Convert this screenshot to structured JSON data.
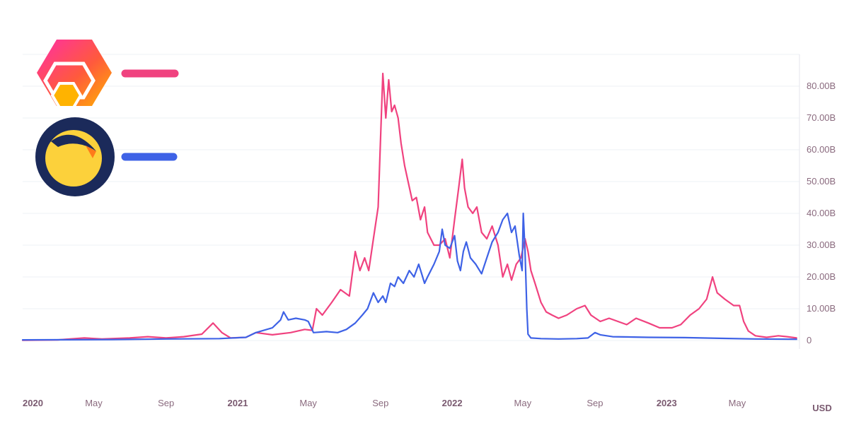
{
  "colors": {
    "hex": "#f0427f",
    "luna": "#3e62e6",
    "tick_text": "#8a6a7e",
    "grid": "#eef0f4"
  },
  "legend": [
    {
      "icon": "hex-logo-icon",
      "color": "#f0427f"
    },
    {
      "icon": "terra-luna-logo-icon",
      "color": "#3e62e6"
    }
  ],
  "unit_label": "USD",
  "chart_data": {
    "type": "line",
    "title": "",
    "xlabel": "",
    "ylabel": "",
    "ylim": [
      0,
      90
    ],
    "yticks": [
      {
        "value": 0,
        "label": "0"
      },
      {
        "value": 10,
        "label": "10.00B"
      },
      {
        "value": 20,
        "label": "20.00B"
      },
      {
        "value": 30,
        "label": "30.00B"
      },
      {
        "value": 40,
        "label": "40.00B"
      },
      {
        "value": 50,
        "label": "50.00B"
      },
      {
        "value": 60,
        "label": "60.00B"
      },
      {
        "value": 70,
        "label": "70.00B"
      },
      {
        "value": 80,
        "label": "80.00B"
      }
    ],
    "xlim": [
      "2020-01-01",
      "2023-08-15"
    ],
    "xticks": [
      {
        "date": "2020-01-01",
        "label": "2020",
        "year": true
      },
      {
        "date": "2020-05-01",
        "label": "May",
        "year": false
      },
      {
        "date": "2020-09-01",
        "label": "Sep",
        "year": false
      },
      {
        "date": "2021-01-01",
        "label": "2021",
        "year": true
      },
      {
        "date": "2021-05-01",
        "label": "May",
        "year": false
      },
      {
        "date": "2021-09-01",
        "label": "Sep",
        "year": false
      },
      {
        "date": "2022-01-01",
        "label": "2022",
        "year": true
      },
      {
        "date": "2022-05-01",
        "label": "May",
        "year": false
      },
      {
        "date": "2022-09-01",
        "label": "Sep",
        "year": false
      },
      {
        "date": "2023-01-01",
        "label": "2023",
        "year": true
      },
      {
        "date": "2023-05-01",
        "label": "May",
        "year": false
      }
    ],
    "series": [
      {
        "color": "#f0427f",
        "points": [
          [
            "2020-01-01",
            0.1
          ],
          [
            "2020-03-01",
            0.2
          ],
          [
            "2020-04-15",
            0.8
          ],
          [
            "2020-05-15",
            0.5
          ],
          [
            "2020-07-01",
            0.8
          ],
          [
            "2020-08-01",
            1.2
          ],
          [
            "2020-09-01",
            0.8
          ],
          [
            "2020-10-01",
            1.2
          ],
          [
            "2020-11-01",
            2.0
          ],
          [
            "2020-11-20",
            5.5
          ],
          [
            "2020-12-05",
            2.5
          ],
          [
            "2020-12-20",
            0.8
          ],
          [
            "2021-01-15",
            1.0
          ],
          [
            "2021-02-01",
            2.5
          ],
          [
            "2021-03-01",
            1.8
          ],
          [
            "2021-04-01",
            2.5
          ],
          [
            "2021-04-25",
            3.5
          ],
          [
            "2021-05-08",
            3.2
          ],
          [
            "2021-05-15",
            10
          ],
          [
            "2021-05-25",
            8
          ],
          [
            "2021-06-10",
            12
          ],
          [
            "2021-06-25",
            16
          ],
          [
            "2021-07-10",
            14
          ],
          [
            "2021-07-20",
            28
          ],
          [
            "2021-07-28",
            22
          ],
          [
            "2021-08-05",
            26
          ],
          [
            "2021-08-12",
            22
          ],
          [
            "2021-08-20",
            32
          ],
          [
            "2021-08-28",
            42
          ],
          [
            "2021-09-05",
            84
          ],
          [
            "2021-09-10",
            70
          ],
          [
            "2021-09-15",
            82
          ],
          [
            "2021-09-20",
            72
          ],
          [
            "2021-09-25",
            74
          ],
          [
            "2021-10-01",
            70
          ],
          [
            "2021-10-06",
            62
          ],
          [
            "2021-10-12",
            55
          ],
          [
            "2021-10-18",
            50
          ],
          [
            "2021-10-25",
            44
          ],
          [
            "2021-11-01",
            45
          ],
          [
            "2021-11-08",
            38
          ],
          [
            "2021-11-15",
            42
          ],
          [
            "2021-11-20",
            34
          ],
          [
            "2021-12-01",
            30
          ],
          [
            "2021-12-10",
            30
          ],
          [
            "2021-12-20",
            32
          ],
          [
            "2021-12-28",
            26
          ],
          [
            "2022-01-05",
            38
          ],
          [
            "2022-01-12",
            48
          ],
          [
            "2022-01-18",
            57
          ],
          [
            "2022-01-22",
            48
          ],
          [
            "2022-01-28",
            42
          ],
          [
            "2022-02-05",
            40
          ],
          [
            "2022-02-12",
            42
          ],
          [
            "2022-02-20",
            34
          ],
          [
            "2022-03-01",
            32
          ],
          [
            "2022-03-10",
            36
          ],
          [
            "2022-03-20",
            30
          ],
          [
            "2022-03-28",
            20
          ],
          [
            "2022-04-05",
            24
          ],
          [
            "2022-04-12",
            19
          ],
          [
            "2022-04-20",
            24
          ],
          [
            "2022-04-28",
            26
          ],
          [
            "2022-05-05",
            32
          ],
          [
            "2022-05-10",
            28
          ],
          [
            "2022-05-15",
            22
          ],
          [
            "2022-05-22",
            18
          ],
          [
            "2022-06-01",
            12
          ],
          [
            "2022-06-10",
            9
          ],
          [
            "2022-06-20",
            8
          ],
          [
            "2022-07-01",
            7
          ],
          [
            "2022-07-15",
            8
          ],
          [
            "2022-08-01",
            10
          ],
          [
            "2022-08-15",
            11
          ],
          [
            "2022-08-25",
            8
          ],
          [
            "2022-09-10",
            6
          ],
          [
            "2022-09-25",
            7
          ],
          [
            "2022-10-10",
            6
          ],
          [
            "2022-10-25",
            5
          ],
          [
            "2022-11-10",
            7
          ],
          [
            "2022-12-01",
            5.5
          ],
          [
            "2022-12-20",
            4
          ],
          [
            "2023-01-10",
            4
          ],
          [
            "2023-01-25",
            5
          ],
          [
            "2023-02-10",
            8
          ],
          [
            "2023-02-25",
            10
          ],
          [
            "2023-03-10",
            13
          ],
          [
            "2023-03-20",
            20
          ],
          [
            "2023-03-28",
            15
          ],
          [
            "2023-04-10",
            13
          ],
          [
            "2023-04-25",
            11
          ],
          [
            "2023-05-05",
            11
          ],
          [
            "2023-05-12",
            6
          ],
          [
            "2023-05-20",
            3
          ],
          [
            "2023-06-01",
            1.5
          ],
          [
            "2023-06-20",
            1
          ],
          [
            "2023-07-10",
            1.5
          ],
          [
            "2023-07-25",
            1.2
          ],
          [
            "2023-08-10",
            0.8
          ]
        ]
      },
      {
        "color": "#3e62e6",
        "points": [
          [
            "2020-01-01",
            0.2
          ],
          [
            "2020-06-01",
            0.3
          ],
          [
            "2020-09-01",
            0.5
          ],
          [
            "2020-12-01",
            0.6
          ],
          [
            "2021-01-15",
            1.0
          ],
          [
            "2021-02-01",
            2.5
          ],
          [
            "2021-03-01",
            4.0
          ],
          [
            "2021-03-15",
            6.5
          ],
          [
            "2021-03-20",
            9.0
          ],
          [
            "2021-03-28",
            6.5
          ],
          [
            "2021-04-10",
            7.0
          ],
          [
            "2021-04-25",
            6.5
          ],
          [
            "2021-05-01",
            6.0
          ],
          [
            "2021-05-10",
            2.5
          ],
          [
            "2021-06-01",
            2.8
          ],
          [
            "2021-06-20",
            2.5
          ],
          [
            "2021-07-05",
            3.5
          ],
          [
            "2021-07-20",
            5.5
          ],
          [
            "2021-08-01",
            8.0
          ],
          [
            "2021-08-10",
            10
          ],
          [
            "2021-08-20",
            15
          ],
          [
            "2021-08-28",
            12
          ],
          [
            "2021-09-05",
            14
          ],
          [
            "2021-09-10",
            12
          ],
          [
            "2021-09-18",
            18
          ],
          [
            "2021-09-25",
            17
          ],
          [
            "2021-10-01",
            20
          ],
          [
            "2021-10-10",
            18
          ],
          [
            "2021-10-20",
            22
          ],
          [
            "2021-10-28",
            20
          ],
          [
            "2021-11-05",
            24
          ],
          [
            "2021-11-10",
            21
          ],
          [
            "2021-11-15",
            18
          ],
          [
            "2021-11-20",
            20
          ],
          [
            "2021-12-01",
            24
          ],
          [
            "2021-12-10",
            28
          ],
          [
            "2021-12-15",
            35
          ],
          [
            "2021-12-20",
            30
          ],
          [
            "2021-12-28",
            29
          ],
          [
            "2022-01-05",
            33
          ],
          [
            "2022-01-10",
            25
          ],
          [
            "2022-01-15",
            22
          ],
          [
            "2022-01-20",
            28
          ],
          [
            "2022-01-25",
            31
          ],
          [
            "2022-02-01",
            26
          ],
          [
            "2022-02-10",
            24
          ],
          [
            "2022-02-20",
            21
          ],
          [
            "2022-03-01",
            26
          ],
          [
            "2022-03-10",
            31
          ],
          [
            "2022-03-20",
            34
          ],
          [
            "2022-03-28",
            38
          ],
          [
            "2022-04-05",
            40
          ],
          [
            "2022-04-12",
            34
          ],
          [
            "2022-04-18",
            36
          ],
          [
            "2022-04-25",
            27
          ],
          [
            "2022-04-30",
            22
          ],
          [
            "2022-05-02",
            40
          ],
          [
            "2022-05-05",
            28
          ],
          [
            "2022-05-08",
            10
          ],
          [
            "2022-05-10",
            2
          ],
          [
            "2022-05-15",
            0.8
          ],
          [
            "2022-06-01",
            0.6
          ],
          [
            "2022-07-01",
            0.5
          ],
          [
            "2022-08-01",
            0.6
          ],
          [
            "2022-08-20",
            0.8
          ],
          [
            "2022-09-01",
            2.5
          ],
          [
            "2022-09-10",
            1.8
          ],
          [
            "2022-10-01",
            1.2
          ],
          [
            "2022-12-01",
            1.0
          ],
          [
            "2023-02-01",
            0.9
          ],
          [
            "2023-04-01",
            0.7
          ],
          [
            "2023-06-01",
            0.5
          ],
          [
            "2023-08-10",
            0.4
          ]
        ]
      }
    ]
  }
}
